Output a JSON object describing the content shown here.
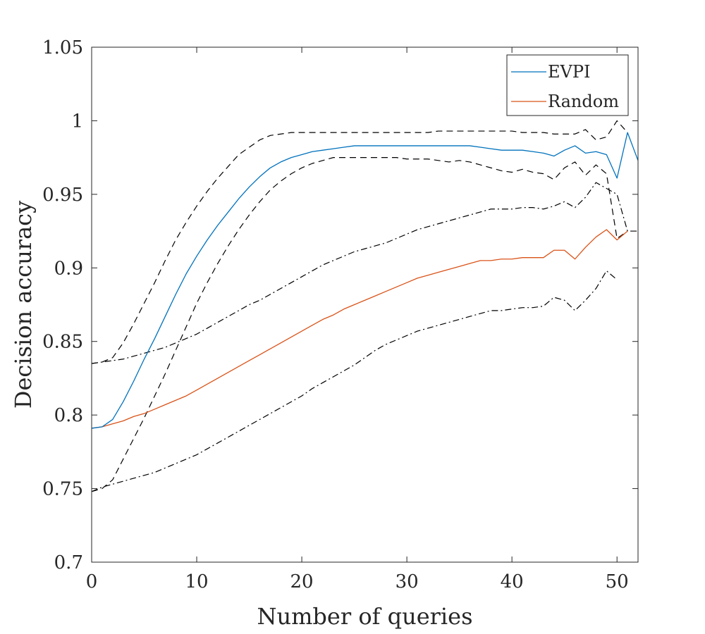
{
  "chart_data": {
    "type": "line",
    "title": "",
    "xlabel": "Number of queries",
    "ylabel": "Decision accuracy",
    "xlim": [
      0,
      52
    ],
    "ylim": [
      0.7,
      1.05
    ],
    "grid": false,
    "legend_position": "top-right",
    "x_ticks": [
      0,
      10,
      20,
      30,
      40,
      50
    ],
    "x_tick_labels": [
      "0",
      "10",
      "20",
      "30",
      "40",
      "50"
    ],
    "y_ticks": [
      0.7,
      0.75,
      0.8,
      0.85,
      0.9,
      0.95,
      1.0,
      1.05
    ],
    "y_tick_labels": [
      "0.7",
      "0.75",
      "0.8",
      "0.85",
      "0.9",
      "0.95",
      "1",
      "1.05"
    ],
    "series": [
      {
        "name": "EVPI",
        "in_legend": true,
        "color": "#0072BD",
        "style": "solid",
        "x": [
          0,
          1,
          2,
          3,
          4,
          5,
          6,
          7,
          8,
          9,
          10,
          11,
          12,
          13,
          14,
          15,
          16,
          17,
          18,
          19,
          20,
          21,
          22,
          23,
          24,
          25,
          26,
          27,
          28,
          29,
          30,
          31,
          32,
          33,
          34,
          35,
          36,
          37,
          38,
          39,
          40,
          41,
          42,
          43,
          44,
          45,
          46,
          47,
          48,
          49,
          50,
          51,
          52
        ],
        "values": [
          0.791,
          0.792,
          0.797,
          0.809,
          0.823,
          0.838,
          0.852,
          0.867,
          0.882,
          0.896,
          0.908,
          0.919,
          0.929,
          0.938,
          0.947,
          0.955,
          0.962,
          0.968,
          0.972,
          0.975,
          0.977,
          0.979,
          0.98,
          0.981,
          0.982,
          0.983,
          0.983,
          0.983,
          0.983,
          0.983,
          0.983,
          0.983,
          0.983,
          0.983,
          0.983,
          0.983,
          0.983,
          0.982,
          0.981,
          0.98,
          0.98,
          0.98,
          0.979,
          0.978,
          0.976,
          0.98,
          0.983,
          0.978,
          0.979,
          0.977,
          0.961,
          0.992,
          0.973
        ]
      },
      {
        "name": "Random",
        "in_legend": true,
        "color": "#D95319",
        "style": "solid",
        "x": [
          0,
          1,
          2,
          3,
          4,
          5,
          6,
          7,
          8,
          9,
          10,
          11,
          12,
          13,
          14,
          15,
          16,
          17,
          18,
          19,
          20,
          21,
          22,
          23,
          24,
          25,
          26,
          27,
          28,
          29,
          30,
          31,
          32,
          33,
          34,
          35,
          36,
          37,
          38,
          39,
          40,
          41,
          42,
          43,
          44,
          45,
          46,
          47,
          48,
          49,
          50,
          51
        ],
        "values": [
          0.791,
          0.792,
          0.794,
          0.796,
          0.799,
          0.801,
          0.804,
          0.807,
          0.81,
          0.813,
          0.817,
          0.821,
          0.825,
          0.829,
          0.833,
          0.837,
          0.841,
          0.845,
          0.849,
          0.853,
          0.857,
          0.861,
          0.865,
          0.868,
          0.872,
          0.875,
          0.878,
          0.881,
          0.884,
          0.887,
          0.89,
          0.893,
          0.895,
          0.897,
          0.899,
          0.901,
          0.903,
          0.905,
          0.905,
          0.906,
          0.906,
          0.907,
          0.907,
          0.907,
          0.912,
          0.912,
          0.906,
          0.914,
          0.921,
          0.926,
          0.919,
          0.925
        ]
      },
      {
        "name": "EVPI upper bound",
        "in_legend": false,
        "color": "#000000",
        "style": "dashed",
        "x": [
          0,
          1,
          2,
          3,
          4,
          5,
          6,
          7,
          8,
          9,
          10,
          11,
          12,
          13,
          14,
          15,
          16,
          17,
          18,
          19,
          20,
          21,
          22,
          23,
          24,
          25,
          26,
          27,
          28,
          29,
          30,
          31,
          32,
          33,
          34,
          35,
          36,
          37,
          38,
          39,
          40,
          41,
          42,
          43,
          44,
          45,
          46,
          47,
          48,
          49,
          50,
          51
        ],
        "values": [
          0.835,
          0.836,
          0.839,
          0.849,
          0.862,
          0.876,
          0.89,
          0.905,
          0.919,
          0.931,
          0.942,
          0.952,
          0.961,
          0.969,
          0.977,
          0.982,
          0.987,
          0.99,
          0.991,
          0.992,
          0.992,
          0.992,
          0.992,
          0.992,
          0.992,
          0.992,
          0.992,
          0.992,
          0.992,
          0.992,
          0.992,
          0.992,
          0.992,
          0.993,
          0.993,
          0.993,
          0.993,
          0.993,
          0.993,
          0.993,
          0.993,
          0.992,
          0.992,
          0.992,
          0.991,
          0.991,
          0.991,
          0.994,
          0.987,
          0.989,
          1.0,
          0.992
        ]
      },
      {
        "name": "EVPI lower bound",
        "in_legend": false,
        "color": "#000000",
        "style": "dashed",
        "x": [
          0,
          1,
          2,
          3,
          4,
          5,
          6,
          7,
          8,
          9,
          10,
          11,
          12,
          13,
          14,
          15,
          16,
          17,
          18,
          19,
          20,
          21,
          22,
          23,
          24,
          25,
          26,
          27,
          28,
          29,
          30,
          31,
          32,
          33,
          34,
          35,
          36,
          37,
          38,
          39,
          40,
          41,
          42,
          43,
          44,
          45,
          46,
          47,
          48,
          49,
          50,
          51
        ],
        "values": [
          0.748,
          0.75,
          0.756,
          0.77,
          0.784,
          0.798,
          0.813,
          0.828,
          0.844,
          0.86,
          0.876,
          0.89,
          0.903,
          0.915,
          0.926,
          0.936,
          0.945,
          0.953,
          0.959,
          0.964,
          0.968,
          0.971,
          0.973,
          0.975,
          0.975,
          0.975,
          0.975,
          0.975,
          0.975,
          0.975,
          0.974,
          0.974,
          0.974,
          0.973,
          0.972,
          0.973,
          0.972,
          0.97,
          0.968,
          0.966,
          0.965,
          0.967,
          0.965,
          0.964,
          0.96,
          0.968,
          0.972,
          0.963,
          0.97,
          0.964,
          0.92,
          0.925
        ]
      },
      {
        "name": "Random upper bound",
        "in_legend": false,
        "color": "#000000",
        "style": "dashdot",
        "x": [
          0,
          1,
          2,
          3,
          4,
          5,
          6,
          7,
          8,
          9,
          10,
          11,
          12,
          13,
          14,
          15,
          16,
          17,
          18,
          19,
          20,
          21,
          22,
          23,
          24,
          25,
          26,
          27,
          28,
          29,
          30,
          31,
          32,
          33,
          34,
          35,
          36,
          37,
          38,
          39,
          40,
          41,
          42,
          43,
          44,
          45,
          46,
          47,
          48,
          49,
          50,
          51,
          52
        ],
        "values": [
          0.835,
          0.836,
          0.837,
          0.838,
          0.84,
          0.842,
          0.844,
          0.846,
          0.849,
          0.852,
          0.855,
          0.859,
          0.863,
          0.867,
          0.871,
          0.875,
          0.878,
          0.882,
          0.886,
          0.89,
          0.894,
          0.898,
          0.902,
          0.905,
          0.908,
          0.911,
          0.913,
          0.915,
          0.917,
          0.92,
          0.923,
          0.926,
          0.928,
          0.93,
          0.932,
          0.934,
          0.936,
          0.938,
          0.94,
          0.94,
          0.94,
          0.941,
          0.941,
          0.94,
          0.942,
          0.945,
          0.941,
          0.948,
          0.958,
          0.954,
          0.95,
          0.925,
          0.925
        ]
      },
      {
        "name": "Random lower bound",
        "in_legend": false,
        "color": "#000000",
        "style": "dashdot",
        "x": [
          0,
          1,
          2,
          3,
          4,
          5,
          6,
          7,
          8,
          9,
          10,
          11,
          12,
          13,
          14,
          15,
          16,
          17,
          18,
          19,
          20,
          21,
          22,
          23,
          24,
          25,
          26,
          27,
          28,
          29,
          30,
          31,
          32,
          33,
          34,
          35,
          36,
          37,
          38,
          39,
          40,
          41,
          42,
          43,
          44,
          45,
          46,
          47,
          48,
          49,
          50
        ],
        "values": [
          0.748,
          0.751,
          0.753,
          0.755,
          0.757,
          0.759,
          0.761,
          0.764,
          0.767,
          0.77,
          0.773,
          0.777,
          0.781,
          0.785,
          0.789,
          0.793,
          0.797,
          0.801,
          0.805,
          0.809,
          0.813,
          0.818,
          0.822,
          0.826,
          0.83,
          0.834,
          0.839,
          0.844,
          0.848,
          0.851,
          0.854,
          0.857,
          0.859,
          0.861,
          0.863,
          0.865,
          0.867,
          0.869,
          0.871,
          0.871,
          0.872,
          0.873,
          0.873,
          0.874,
          0.88,
          0.878,
          0.871,
          0.878,
          0.886,
          0.898,
          0.892
        ]
      }
    ]
  }
}
